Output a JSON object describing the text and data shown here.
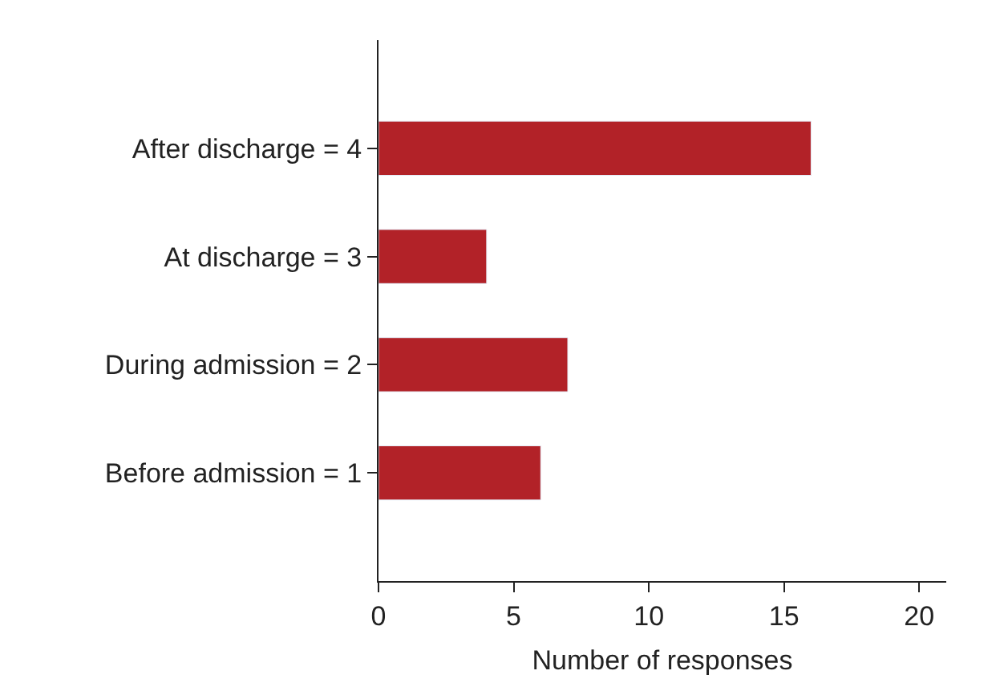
{
  "chart_data": {
    "type": "bar",
    "orientation": "horizontal",
    "xlabel": "Number of responses",
    "categories": [
      "After discharge = 4",
      "At discharge = 3",
      "During admission = 2",
      "Before admission = 1"
    ],
    "values": [
      16,
      4,
      7,
      6
    ],
    "color": "#b22228",
    "xlim": [
      0,
      21
    ],
    "xticks": [
      0,
      5,
      10,
      15,
      20
    ]
  }
}
